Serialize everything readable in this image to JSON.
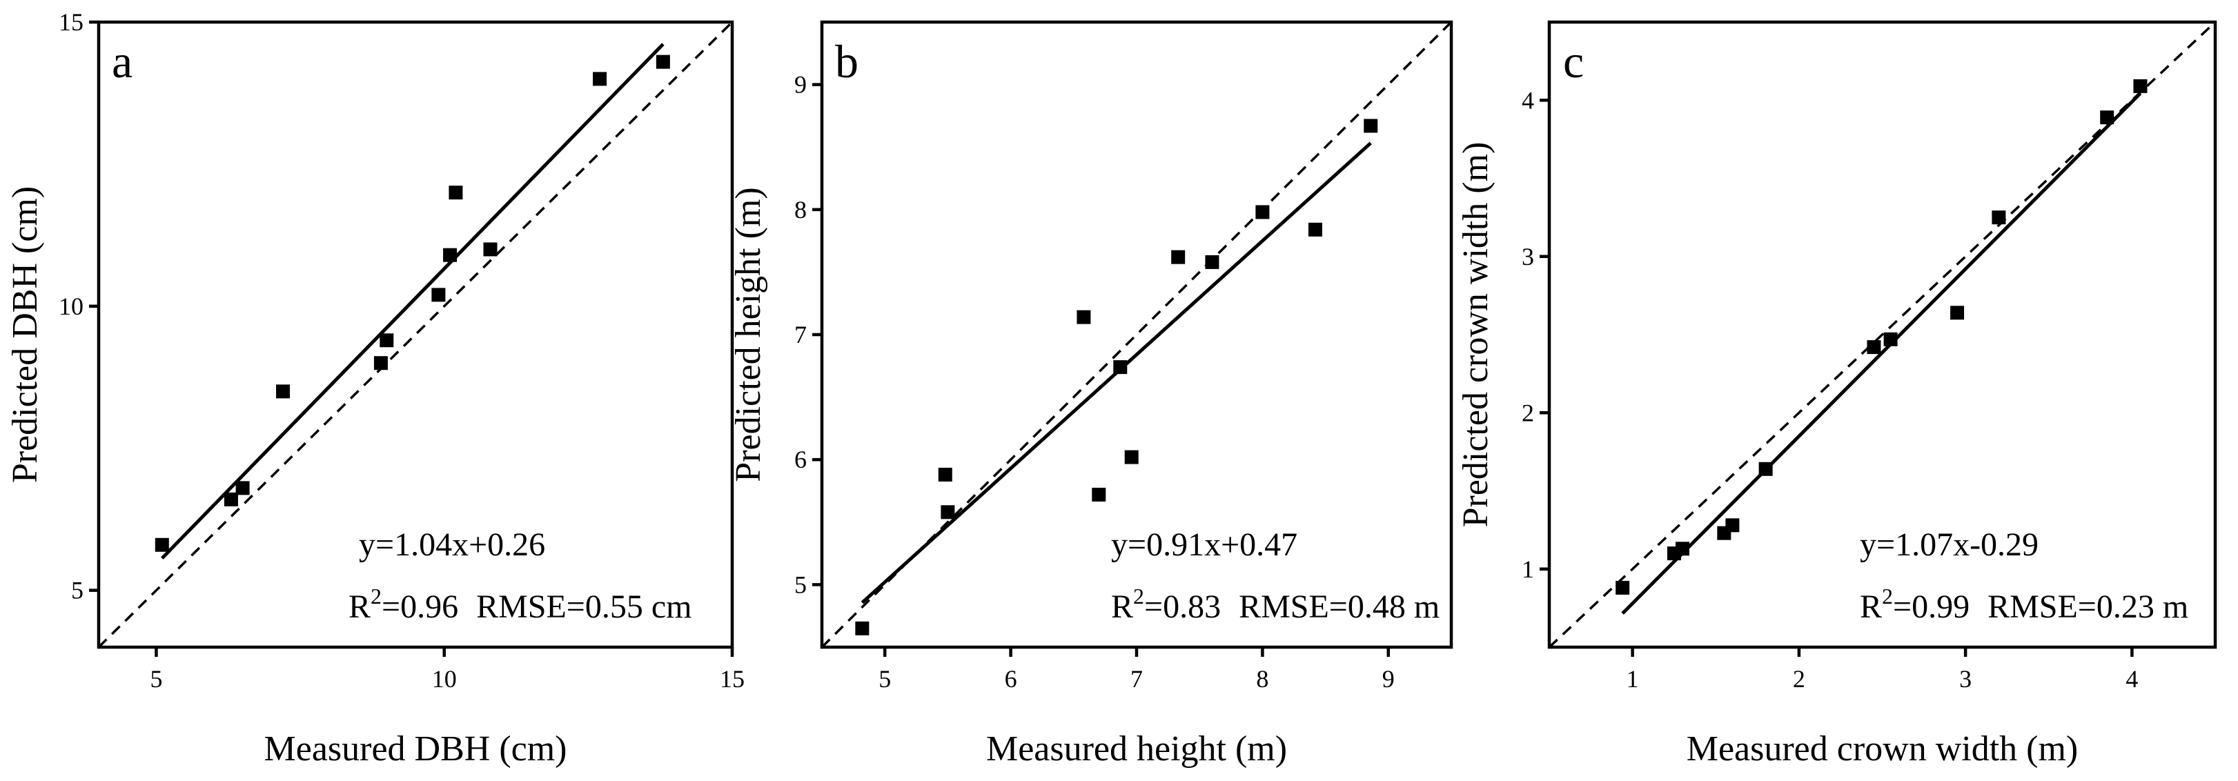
{
  "chart_data": [
    {
      "type": "scatter",
      "panel": "a",
      "xlabel": "Measured DBH (cm)",
      "ylabel": "Predicted DBH (cm)",
      "xlim": [
        4,
        15
      ],
      "ylim": [
        4,
        15
      ],
      "xticks": [
        5,
        10,
        15
      ],
      "yticks": [
        5,
        10,
        15
      ],
      "points": [
        {
          "x": 5.1,
          "y": 5.8
        },
        {
          "x": 6.3,
          "y": 6.6
        },
        {
          "x": 6.5,
          "y": 6.8
        },
        {
          "x": 7.2,
          "y": 8.5
        },
        {
          "x": 8.9,
          "y": 9.0
        },
        {
          "x": 9.0,
          "y": 9.4
        },
        {
          "x": 9.9,
          "y": 10.2
        },
        {
          "x": 10.1,
          "y": 10.9
        },
        {
          "x": 10.2,
          "y": 12.0
        },
        {
          "x": 10.8,
          "y": 11.0
        },
        {
          "x": 12.7,
          "y": 14.0
        },
        {
          "x": 13.8,
          "y": 14.3
        }
      ],
      "fit": {
        "slope": 1.04,
        "intercept": 0.26,
        "x_range": [
          5.1,
          13.8
        ]
      },
      "reference": "1:1",
      "equation": "y=1.04x+0.26",
      "stats": {
        "r2_label": "R",
        "r2_sup": "2",
        "r2_value": "=0.96",
        "rmse": "RMSE=0.55 cm"
      }
    },
    {
      "type": "scatter",
      "panel": "b",
      "xlabel": "Measured height (m)",
      "ylabel": "Predicted height (m)",
      "xlim": [
        4.5,
        9.5
      ],
      "ylim": [
        4.5,
        9.5
      ],
      "xticks": [
        5,
        6,
        7,
        8,
        9
      ],
      "yticks": [
        5,
        6,
        7,
        8,
        9
      ],
      "points": [
        {
          "x": 4.82,
          "y": 4.65
        },
        {
          "x": 5.48,
          "y": 5.88
        },
        {
          "x": 5.5,
          "y": 5.58
        },
        {
          "x": 6.58,
          "y": 7.14
        },
        {
          "x": 6.7,
          "y": 5.72
        },
        {
          "x": 6.87,
          "y": 6.74
        },
        {
          "x": 6.96,
          "y": 6.02
        },
        {
          "x": 7.33,
          "y": 7.62
        },
        {
          "x": 7.6,
          "y": 7.58
        },
        {
          "x": 8.0,
          "y": 7.98
        },
        {
          "x": 8.42,
          "y": 7.84
        },
        {
          "x": 8.86,
          "y": 8.67
        }
      ],
      "fit": {
        "slope": 0.91,
        "intercept": 0.47,
        "x_range": [
          4.82,
          8.86
        ]
      },
      "reference": "1:1",
      "equation": "y=0.91x+0.47",
      "stats": {
        "r2_label": "R",
        "r2_sup": "2",
        "r2_value": "=0.83",
        "rmse": "RMSE=0.48 m"
      }
    },
    {
      "type": "scatter",
      "panel": "c",
      "xlabel": "Measured crown width (m)",
      "ylabel": "Predicted crown width (m)",
      "xlim": [
        0.5,
        4.5
      ],
      "ylim": [
        0.5,
        4.5
      ],
      "xticks": [
        1,
        2,
        3,
        4
      ],
      "yticks": [
        1,
        2,
        3,
        4
      ],
      "points": [
        {
          "x": 0.94,
          "y": 0.88
        },
        {
          "x": 1.25,
          "y": 1.1
        },
        {
          "x": 1.3,
          "y": 1.13
        },
        {
          "x": 1.55,
          "y": 1.23
        },
        {
          "x": 1.6,
          "y": 1.28
        },
        {
          "x": 1.8,
          "y": 1.64
        },
        {
          "x": 2.45,
          "y": 2.42
        },
        {
          "x": 2.55,
          "y": 2.47
        },
        {
          "x": 2.95,
          "y": 2.64
        },
        {
          "x": 3.2,
          "y": 3.25
        },
        {
          "x": 3.85,
          "y": 3.89
        },
        {
          "x": 4.05,
          "y": 4.09
        }
      ],
      "fit": {
        "slope": 1.07,
        "intercept": -0.29,
        "x_range": [
          0.94,
          4.05
        ]
      },
      "reference": "1:1",
      "equation": "y=1.07x-0.29",
      "stats": {
        "r2_label": "R",
        "r2_sup": "2",
        "r2_value": "=0.99",
        "rmse": "RMSE=0.23 m"
      }
    }
  ]
}
